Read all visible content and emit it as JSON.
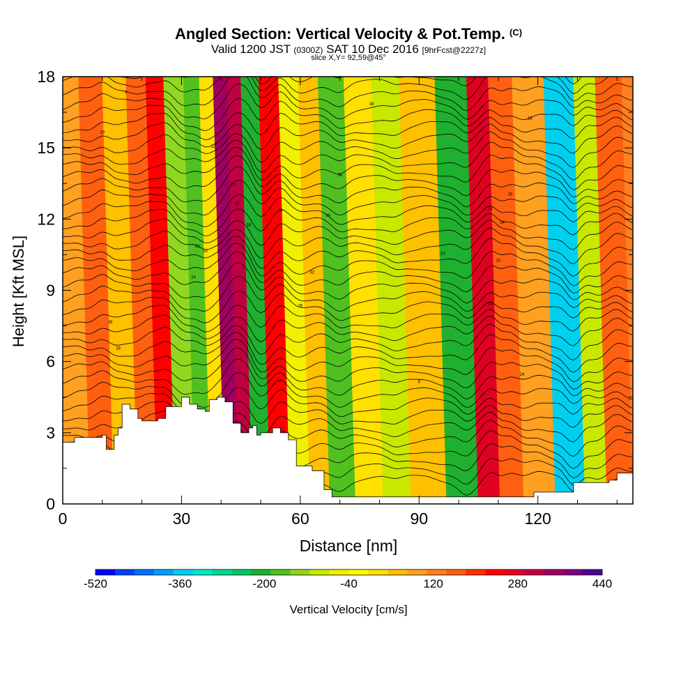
{
  "header": {
    "title": "Angled Section: Vertical Velocity & Pot.Temp.",
    "title_unit": "(C)",
    "valid_prefix": "Valid 1200 JST",
    "valid_zulu": "(0300Z)",
    "valid_date": "SAT 10 Dec 2016",
    "forecast": "[9hrFcst@2227z]",
    "slice": "slice X,Y= 92,59@45°"
  },
  "chart_data": {
    "type": "heatmap",
    "description_fields": "vertical velocity shaded, potential temperature contoured",
    "xlabel": "Distance [nm]",
    "ylabel": "Height [Kft MSL]",
    "xlim": [
      0,
      144
    ],
    "ylim": [
      0,
      18
    ],
    "x_ticks": [
      0,
      30,
      60,
      90,
      120
    ],
    "y_ticks": [
      0,
      3,
      6,
      9,
      12,
      15,
      18
    ],
    "colorbar": {
      "label": "Vertical Velocity [cm/s]",
      "tick_labels": [
        -520,
        -360,
        -200,
        -40,
        120,
        280,
        440
      ],
      "min": -520,
      "max": 440,
      "colors": [
        "#0000ff",
        "#0040ff",
        "#0070ff",
        "#00a0ff",
        "#00d0f0",
        "#00e8c8",
        "#00d890",
        "#00c860",
        "#20b030",
        "#50c020",
        "#90d820",
        "#c8e800",
        "#f0f000",
        "#ffff00",
        "#ffe000",
        "#ffc000",
        "#ffa020",
        "#ff8020",
        "#ff6010",
        "#ff3000",
        "#ff0000",
        "#e00020",
        "#c00040",
        "#a00060",
        "#800080",
        "#500090"
      ]
    },
    "bands": [
      {
        "x": 4,
        "value": 90
      },
      {
        "x": 10,
        "value": 180
      },
      {
        "x": 16,
        "value": 40
      },
      {
        "x": 22,
        "value": 160
      },
      {
        "x": 26,
        "value": 220
      },
      {
        "x": 31,
        "value": -120
      },
      {
        "x": 36,
        "value": -180
      },
      {
        "x": 39,
        "value": 0
      },
      {
        "x": 43,
        "value": 360
      },
      {
        "x": 46,
        "value": 300
      },
      {
        "x": 50,
        "value": -200
      },
      {
        "x": 55,
        "value": 240
      },
      {
        "x": 60,
        "value": -60
      },
      {
        "x": 65,
        "value": 60
      },
      {
        "x": 70,
        "value": -160
      },
      {
        "x": 78,
        "value": 0
      },
      {
        "x": 84,
        "value": -100
      },
      {
        "x": 92,
        "value": 40
      },
      {
        "x": 102,
        "value": -220
      },
      {
        "x": 108,
        "value": 280
      },
      {
        "x": 113,
        "value": 160
      },
      {
        "x": 120,
        "value": 80
      },
      {
        "x": 129,
        "value": -340
      },
      {
        "x": 135,
        "value": -100
      },
      {
        "x": 140,
        "value": 160
      }
    ],
    "terrain": [
      [
        0,
        2.6
      ],
      [
        3,
        2.8
      ],
      [
        10,
        2.9
      ],
      [
        11,
        2.3
      ],
      [
        13,
        2.9
      ],
      [
        14,
        3.2
      ],
      [
        15,
        4.2
      ],
      [
        17,
        4.0
      ],
      [
        19,
        3.6
      ],
      [
        20,
        3.5
      ],
      [
        24,
        3.6
      ],
      [
        26,
        4.1
      ],
      [
        30,
        4.5
      ],
      [
        32,
        4.2
      ],
      [
        34,
        4.0
      ],
      [
        36,
        3.9
      ],
      [
        37,
        4.4
      ],
      [
        39,
        4.5
      ],
      [
        41,
        4.3
      ],
      [
        43,
        3.4
      ],
      [
        45,
        3.0
      ],
      [
        47,
        3.2
      ],
      [
        48,
        3.3
      ],
      [
        49,
        2.9
      ],
      [
        50,
        3.0
      ],
      [
        53,
        3.2
      ],
      [
        55,
        3.0
      ],
      [
        57,
        2.7
      ],
      [
        59,
        1.6
      ],
      [
        63,
        1.4
      ],
      [
        66,
        0.6
      ],
      [
        68,
        0.3
      ],
      [
        75,
        0.3
      ],
      [
        115,
        0.3
      ],
      [
        119,
        0.5
      ],
      [
        128,
        0.5
      ],
      [
        129,
        0.9
      ],
      [
        138,
        1.0
      ],
      [
        140,
        1.3
      ],
      [
        144,
        1.3
      ]
    ],
    "contour_labels": [
      "8",
      "10",
      "12",
      "14",
      "16",
      "18",
      "20",
      "22",
      "24",
      "26",
      "28",
      "30",
      "32",
      "34",
      "36",
      "38"
    ]
  }
}
